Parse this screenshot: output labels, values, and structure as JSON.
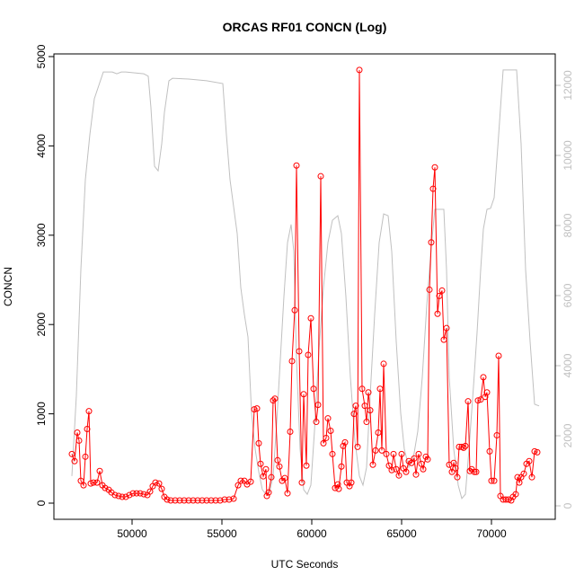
{
  "chart_data": {
    "type": "line",
    "title": "ORCAS RF01 CONCN (Log)",
    "x_label": "UTC Seconds",
    "y_label": "CONCN",
    "xlim": [
      45650,
      73550
    ],
    "xticks": [
      50000,
      55000,
      60000,
      65000,
      70000
    ],
    "ylim": [
      -181,
      5030
    ],
    "yticks": [
      0,
      1000,
      2000,
      3000,
      4000,
      5000
    ],
    "y2lim": [
      -385,
      12897
    ],
    "y2ticks": [
      0,
      2000,
      4000,
      6000,
      8000,
      10000,
      12000
    ],
    "grid": false,
    "series": [
      {
        "color": "#ff0000",
        "markers": true,
        "x": [
          46650,
          46800,
          46950,
          47050,
          47150,
          47300,
          47400,
          47500,
          47600,
          47700,
          47850,
          48050,
          48200,
          48350,
          48500,
          48700,
          48850,
          49050,
          49250,
          49450,
          49650,
          49850,
          50050,
          50250,
          50450,
          50650,
          50850,
          51000,
          51150,
          51300,
          51500,
          51650,
          51800,
          51950,
          52150,
          52400,
          52650,
          52900,
          53150,
          53400,
          53650,
          53900,
          54150,
          54400,
          54650,
          54900,
          55150,
          55400,
          55650,
          55900,
          56050,
          56250,
          56400,
          56600,
          56800,
          56950,
          57050,
          57150,
          57300,
          57450,
          57500,
          57600,
          57750,
          57850,
          57950,
          58100,
          58200,
          58350,
          58500,
          58650,
          58800,
          58900,
          59050,
          59150,
          59300,
          59450,
          59550,
          59700,
          59800,
          59950,
          60100,
          60250,
          60350,
          60500,
          60650,
          60800,
          60900,
          61050,
          61150,
          61300,
          61450,
          61500,
          61650,
          61750,
          61850,
          61950,
          62100,
          62200,
          62350,
          62450,
          62550,
          62650,
          62800,
          62950,
          63050,
          63150,
          63250,
          63400,
          63550,
          63700,
          63800,
          63900,
          64000,
          64150,
          64300,
          64450,
          64550,
          64700,
          64850,
          65000,
          65100,
          65250,
          65400,
          65550,
          65700,
          65800,
          65950,
          66100,
          66200,
          66350,
          66450,
          66550,
          66650,
          66750,
          66850,
          67000,
          67100,
          67250,
          67350,
          67500,
          67650,
          67800,
          67900,
          68000,
          68100,
          68200,
          68350,
          68450,
          68550,
          68700,
          68800,
          68900,
          69050,
          69150,
          69250,
          69400,
          69550,
          69650,
          69750,
          69900,
          70000,
          70150,
          70300,
          70400,
          70500,
          70650,
          70800,
          70950,
          71100,
          71200,
          71350,
          71450,
          71550,
          71650,
          71800,
          71950,
          72100,
          72250,
          72400,
          72550
        ],
        "values": [
          550,
          470,
          790,
          700,
          250,
          200,
          520,
          830,
          1030,
          220,
          230,
          230,
          360,
          200,
          170,
          150,
          120,
          90,
          80,
          70,
          70,
          90,
          110,
          110,
          110,
          100,
          90,
          130,
          190,
          230,
          220,
          160,
          70,
          40,
          30,
          30,
          30,
          30,
          30,
          30,
          30,
          30,
          30,
          30,
          30,
          30,
          40,
          40,
          50,
          200,
          250,
          250,
          210,
          240,
          1050,
          1060,
          670,
          440,
          300,
          380,
          80,
          120,
          290,
          1150,
          1170,
          480,
          410,
          250,
          280,
          110,
          800,
          1590,
          2160,
          3780,
          1700,
          230,
          1220,
          420,
          1660,
          2070,
          1280,
          910,
          1100,
          3660,
          670,
          730,
          950,
          810,
          550,
          170,
          210,
          160,
          410,
          640,
          680,
          230,
          190,
          230,
          1000,
          1090,
          630,
          4850,
          1280,
          1090,
          910,
          1240,
          1040,
          430,
          590,
          790,
          1280,
          590,
          1560,
          550,
          420,
          370,
          550,
          380,
          310,
          550,
          390,
          350,
          470,
          450,
          500,
          320,
          550,
          440,
          380,
          520,
          490,
          2390,
          2920,
          3520,
          3760,
          2120,
          2320,
          2380,
          1830,
          1960,
          430,
          350,
          450,
          390,
          290,
          630,
          630,
          620,
          640,
          1140,
          360,
          380,
          350,
          350,
          1150,
          1160,
          1410,
          1190,
          1240,
          580,
          250,
          250,
          760,
          1650,
          80,
          40,
          40,
          40,
          30,
          70,
          100,
          290,
          230,
          290,
          330,
          440,
          470,
          290,
          580,
          570
        ]
      },
      {
        "color": "#c0c0c0",
        "axis": "y2",
        "markers": false,
        "x": [
          46650,
          46900,
          47150,
          47400,
          47650,
          47900,
          48150,
          48400,
          48650,
          48900,
          49150,
          49400,
          49650,
          50650,
          50900,
          51050,
          51250,
          51450,
          51650,
          51800,
          52050,
          52250,
          53150,
          54150,
          55050,
          55250,
          55450,
          55650,
          55850,
          56050,
          56250,
          56450,
          56650,
          56850,
          57050,
          57250,
          57450,
          57650,
          57850,
          58050,
          58250,
          58450,
          58650,
          58850,
          59000,
          59150,
          59350,
          59550,
          59750,
          59950,
          60150,
          60400,
          60650,
          60900,
          61150,
          61450,
          61650,
          61900,
          62150,
          62400,
          62650,
          62850,
          63050,
          63250,
          63500,
          63750,
          64000,
          64250,
          64450,
          64700,
          64950,
          65150,
          65400,
          65650,
          65900,
          66150,
          66400,
          66650,
          66850,
          67150,
          67350,
          67500,
          67650,
          67900,
          68150,
          68350,
          68550,
          68750,
          69000,
          69200,
          69400,
          69550,
          69750,
          69950,
          70150,
          70400,
          70650,
          70900,
          71150,
          71400,
          71650,
          71900,
          72150,
          72400,
          72650
        ],
        "values": [
          850,
          3150,
          6740,
          9310,
          10590,
          11620,
          12000,
          12380,
          12380,
          12380,
          12330,
          12380,
          12380,
          12330,
          12260,
          11360,
          9690,
          9560,
          10330,
          11230,
          12130,
          12200,
          12180,
          12130,
          12050,
          10590,
          9310,
          8540,
          7770,
          6230,
          5460,
          4820,
          2640,
          1620,
          970,
          460,
          330,
          380,
          850,
          2380,
          4180,
          5970,
          7510,
          8030,
          7260,
          4180,
          1620,
          460,
          330,
          590,
          2130,
          4440,
          6230,
          7510,
          8150,
          8280,
          7770,
          5970,
          3670,
          1870,
          850,
          590,
          1100,
          3150,
          5460,
          7510,
          8330,
          8280,
          7260,
          4690,
          2640,
          1620,
          1100,
          1360,
          2130,
          3670,
          5720,
          7380,
          8460,
          8460,
          8460,
          6740,
          3670,
          1620,
          590,
          210,
          330,
          1620,
          3410,
          4950,
          6740,
          7900,
          8460,
          8490,
          8790,
          10590,
          12440,
          12440,
          12440,
          12440,
          10330,
          6740,
          4690,
          2900,
          2850
        ]
      }
    ]
  }
}
